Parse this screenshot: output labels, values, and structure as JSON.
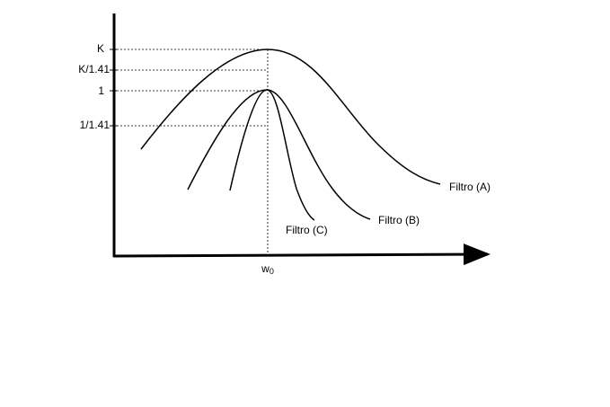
{
  "y_labels": [
    "K",
    "K/1.41",
    "1",
    "1/1.41"
  ],
  "x_label": {
    "base": "w",
    "subscript": "0"
  },
  "curves": [
    {
      "label": "Filtro (A)"
    },
    {
      "label": "Filtro (B)"
    },
    {
      "label": "Filtro (C)"
    }
  ]
}
